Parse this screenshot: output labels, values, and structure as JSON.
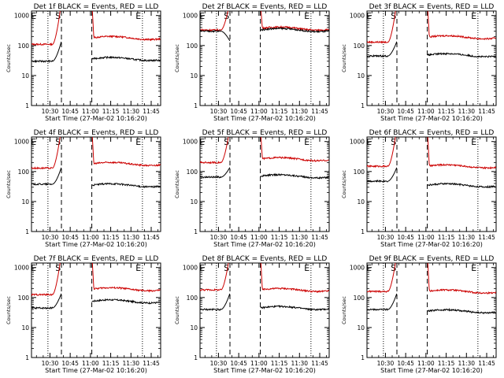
{
  "chart_data": [
    {
      "type": "line",
      "title": "Det 1f BLACK = Events, RED = LLD",
      "xlabel": "Start Time (27-Mar-02 10:16:20)",
      "ylabel": "Counts/sec",
      "yscale": "log",
      "xticks": [
        "10:30",
        "10:45",
        "11:00",
        "11:15",
        "11:30",
        "11:45"
      ],
      "yticks": [
        "1",
        "10",
        "100",
        "1000"
      ],
      "markers": [
        "E",
        "S",
        "E"
      ],
      "red_base": 180,
      "black_base": 36,
      "red_pre": 110,
      "black_pre": 30,
      "series": [
        {
          "name": "RED = LLD",
          "color": "#cc0000"
        },
        {
          "name": "BLACK = Events",
          "color": "#000000"
        }
      ]
    },
    {
      "type": "line",
      "title": "Det 2f BLACK = Events, RED = LLD",
      "xlabel": "Start Time (27-Mar-02 10:16:20)",
      "ylabel": "Counts/sec",
      "yscale": "log",
      "xticks": [
        "10:30",
        "10:45",
        "11:00",
        "11:15",
        "11:30",
        "11:45"
      ],
      "yticks": [
        "1",
        "10",
        "100",
        "1000"
      ],
      "markers": [
        "E",
        "S",
        "E"
      ],
      "red_base": 370,
      "black_base": 330,
      "red_pre": 330,
      "black_pre": 300,
      "series": [
        {
          "name": "RED = LLD",
          "color": "#cc0000"
        },
        {
          "name": "BLACK = Events",
          "color": "#000000"
        }
      ]
    },
    {
      "type": "line",
      "title": "Det 3f BLACK = Events, RED = LLD",
      "xlabel": "Start Time (27-Mar-02 10:16:20)",
      "ylabel": "Counts/sec",
      "yscale": "log",
      "xticks": [
        "10:30",
        "10:45",
        "11:00",
        "11:15",
        "11:30",
        "11:45"
      ],
      "yticks": [
        "1",
        "10",
        "100",
        "1000"
      ],
      "markers": [
        "E",
        "S",
        "E"
      ],
      "red_base": 190,
      "black_base": 48,
      "red_pre": 130,
      "black_pre": 45,
      "series": [
        {
          "name": "RED = LLD",
          "color": "#cc0000"
        },
        {
          "name": "BLACK = Events",
          "color": "#000000"
        }
      ]
    },
    {
      "type": "line",
      "title": "Det 4f BLACK = Events, RED = LLD",
      "xlabel": "Start Time (27-Mar-02 10:16:20)",
      "ylabel": "Counts/sec",
      "yscale": "log",
      "xticks": [
        "10:30",
        "10:45",
        "11:00",
        "11:15",
        "11:30",
        "11:45"
      ],
      "yticks": [
        "1",
        "10",
        "100",
        "1000"
      ],
      "markers": [
        "E",
        "S",
        "E"
      ],
      "red_base": 180,
      "black_base": 35,
      "red_pre": 130,
      "black_pre": 38,
      "series": [
        {
          "name": "RED = LLD",
          "color": "#cc0000"
        },
        {
          "name": "BLACK = Events",
          "color": "#000000"
        }
      ]
    },
    {
      "type": "line",
      "title": "Det 5f BLACK = Events, RED = LLD",
      "xlabel": "Start Time (27-Mar-02 10:16:20)",
      "ylabel": "Counts/sec",
      "yscale": "log",
      "xticks": [
        "10:30",
        "10:45",
        "11:00",
        "11:15",
        "11:30",
        "11:45"
      ],
      "yticks": [
        "1",
        "10",
        "100",
        "1000"
      ],
      "markers": [
        "E",
        "S",
        "E"
      ],
      "red_base": 260,
      "black_base": 70,
      "red_pre": 200,
      "black_pre": 65,
      "series": [
        {
          "name": "RED = LLD",
          "color": "#cc0000"
        },
        {
          "name": "BLACK = Events",
          "color": "#000000"
        }
      ]
    },
    {
      "type": "line",
      "title": "Det 6f BLACK = Events, RED = LLD",
      "xlabel": "Start Time (27-Mar-02 10:16:20)",
      "ylabel": "Counts/sec",
      "yscale": "log",
      "xticks": [
        "10:30",
        "10:45",
        "11:00",
        "11:15",
        "11:30",
        "11:45"
      ],
      "yticks": [
        "1",
        "10",
        "100",
        "1000"
      ],
      "markers": [
        "E",
        "S",
        "E"
      ],
      "red_base": 150,
      "black_base": 35,
      "red_pre": 150,
      "black_pre": 48,
      "series": [
        {
          "name": "RED = LLD",
          "color": "#cc0000"
        },
        {
          "name": "BLACK = Events",
          "color": "#000000"
        }
      ]
    },
    {
      "type": "line",
      "title": "Det 7f BLACK = Events, RED = LLD",
      "xlabel": "Start Time (27-Mar-02 10:16:20)",
      "ylabel": "Counts/sec",
      "yscale": "log",
      "xticks": [
        "10:30",
        "10:45",
        "11:00",
        "11:15",
        "11:30",
        "11:45"
      ],
      "yticks": [
        "1",
        "10",
        "100",
        "1000"
      ],
      "markers": [
        "E",
        "S",
        "E"
      ],
      "red_base": 190,
      "black_base": 75,
      "red_pre": 125,
      "black_pre": 45,
      "series": [
        {
          "name": "RED = LLD",
          "color": "#cc0000"
        },
        {
          "name": "BLACK = Events",
          "color": "#000000"
        }
      ]
    },
    {
      "type": "line",
      "title": "Det 8f BLACK = Events, RED = LLD",
      "xlabel": "Start Time (27-Mar-02 10:16:20)",
      "ylabel": "Counts/sec",
      "yscale": "log",
      "xticks": [
        "10:30",
        "10:45",
        "11:00",
        "11:15",
        "11:30",
        "11:45"
      ],
      "yticks": [
        "1",
        "10",
        "100",
        "1000"
      ],
      "markers": [
        "E",
        "S",
        "E"
      ],
      "red_base": 180,
      "black_base": 45,
      "red_pre": 180,
      "black_pre": 40,
      "series": [
        {
          "name": "RED = LLD",
          "color": "#cc0000"
        },
        {
          "name": "BLACK = Events",
          "color": "#000000"
        }
      ]
    },
    {
      "type": "line",
      "title": "Det 9f BLACK = Events, RED = LLD",
      "xlabel": "Start Time (27-Mar-02 10:16:20)",
      "ylabel": "Counts/sec",
      "yscale": "log",
      "xticks": [
        "10:30",
        "10:45",
        "11:00",
        "11:15",
        "11:30",
        "11:45"
      ],
      "yticks": [
        "1",
        "10",
        "100",
        "1000"
      ],
      "markers": [
        "E",
        "S",
        "E"
      ],
      "red_base": 160,
      "black_base": 35,
      "red_pre": 160,
      "black_pre": 40,
      "series": [
        {
          "name": "RED = LLD",
          "color": "#cc0000"
        },
        {
          "name": "BLACK = Events",
          "color": "#000000"
        }
      ]
    }
  ]
}
